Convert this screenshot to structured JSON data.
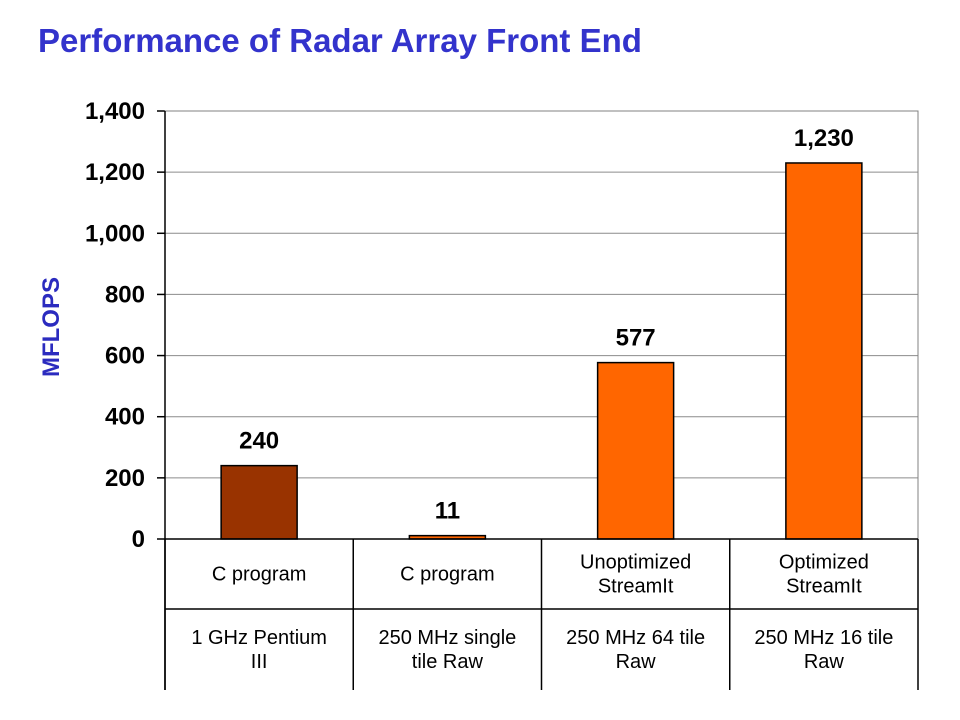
{
  "title": "Performance of Radar Array Front End",
  "chart_data": {
    "type": "bar",
    "ylabel": "MFLOPS",
    "ylim": [
      0,
      1400
    ],
    "yticks": [
      0,
      200,
      400,
      600,
      800,
      1000,
      1200,
      1400
    ],
    "ytick_labels": [
      "0",
      "200",
      "400",
      "600",
      "800",
      "1,000",
      "1,200",
      "1,400"
    ],
    "grid": true,
    "legend": "none",
    "categories": [
      {
        "line1": [
          "C program"
        ],
        "line2": [
          "1 GHz Pentium",
          "III"
        ]
      },
      {
        "line1": [
          "C program"
        ],
        "line2": [
          "250 MHz single",
          "tile Raw"
        ]
      },
      {
        "line1": [
          "Unoptimized",
          "StreamIt"
        ],
        "line2": [
          "250 MHz 64 tile",
          "Raw"
        ]
      },
      {
        "line1": [
          "Optimized",
          "StreamIt"
        ],
        "line2": [
          "250 MHz 16 tile",
          "Raw"
        ]
      }
    ],
    "values": [
      240,
      11,
      577,
      1230
    ],
    "value_labels": [
      "240",
      "11",
      "577",
      "1,230"
    ],
    "colors": [
      "#993300",
      "#ff6600",
      "#ff6600",
      "#ff6600"
    ]
  }
}
